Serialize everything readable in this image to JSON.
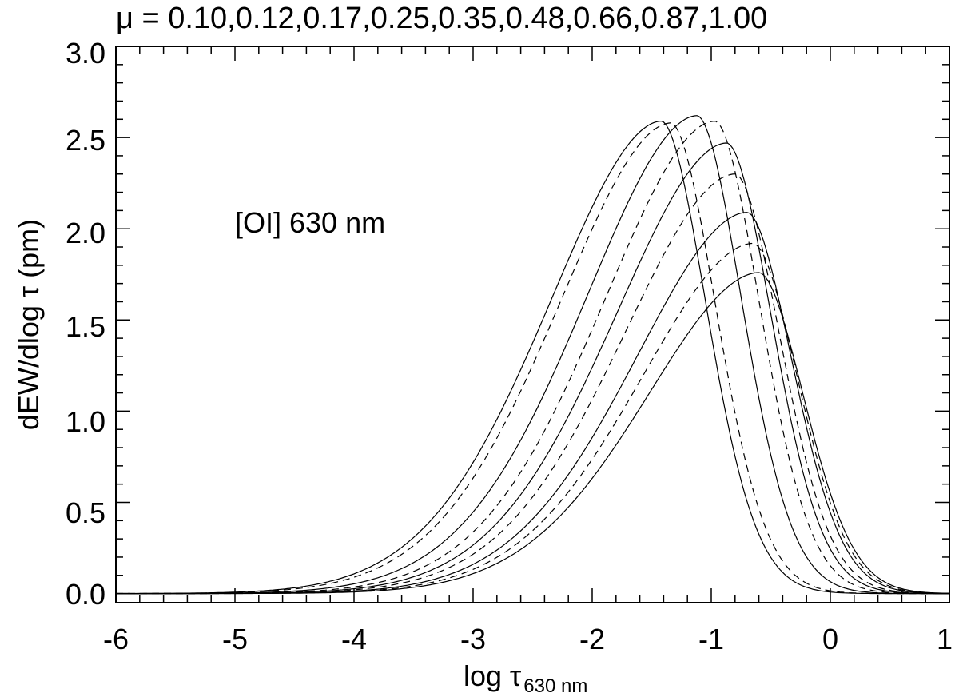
{
  "chart_data": {
    "type": "line",
    "title": "μ = 0.10,0.12,0.17,0.25,0.35,0.48,0.66,0.87,1.00",
    "xlabel": "log τ",
    "xlabel_subscript": "630 nm",
    "ylabel": "dEW/dlog τ (pm)",
    "xlim": [
      -6,
      1
    ],
    "ylim": [
      -0.05,
      3.0
    ],
    "xticks": [
      "-6",
      "-5",
      "-4",
      "-3",
      "-2",
      "-1",
      "0",
      "1"
    ],
    "yticks": [
      "0.0",
      "0.5",
      "1.0",
      "1.5",
      "2.0",
      "2.5",
      "3.0"
    ],
    "annotation": "[OI] 630 nm",
    "grid": false,
    "series": [
      {
        "peak_x": -1.42,
        "peak_y": 2.59,
        "line_style": "solid"
      },
      {
        "peak_x": -1.34,
        "peak_y": 2.58,
        "line_style": "dashed"
      },
      {
        "peak_x": -1.12,
        "peak_y": 2.62,
        "line_style": "solid"
      },
      {
        "peak_x": -0.97,
        "peak_y": 2.59,
        "line_style": "dashed"
      },
      {
        "peak_x": -0.87,
        "peak_y": 2.47,
        "line_style": "solid"
      },
      {
        "peak_x": -0.8,
        "peak_y": 2.3,
        "line_style": "dashed"
      },
      {
        "peak_x": -0.7,
        "peak_y": 2.09,
        "line_style": "solid"
      },
      {
        "peak_x": -0.65,
        "peak_y": 1.92,
        "line_style": "dashed"
      },
      {
        "peak_x": -0.6,
        "peak_y": 1.76,
        "line_style": "solid"
      }
    ]
  }
}
